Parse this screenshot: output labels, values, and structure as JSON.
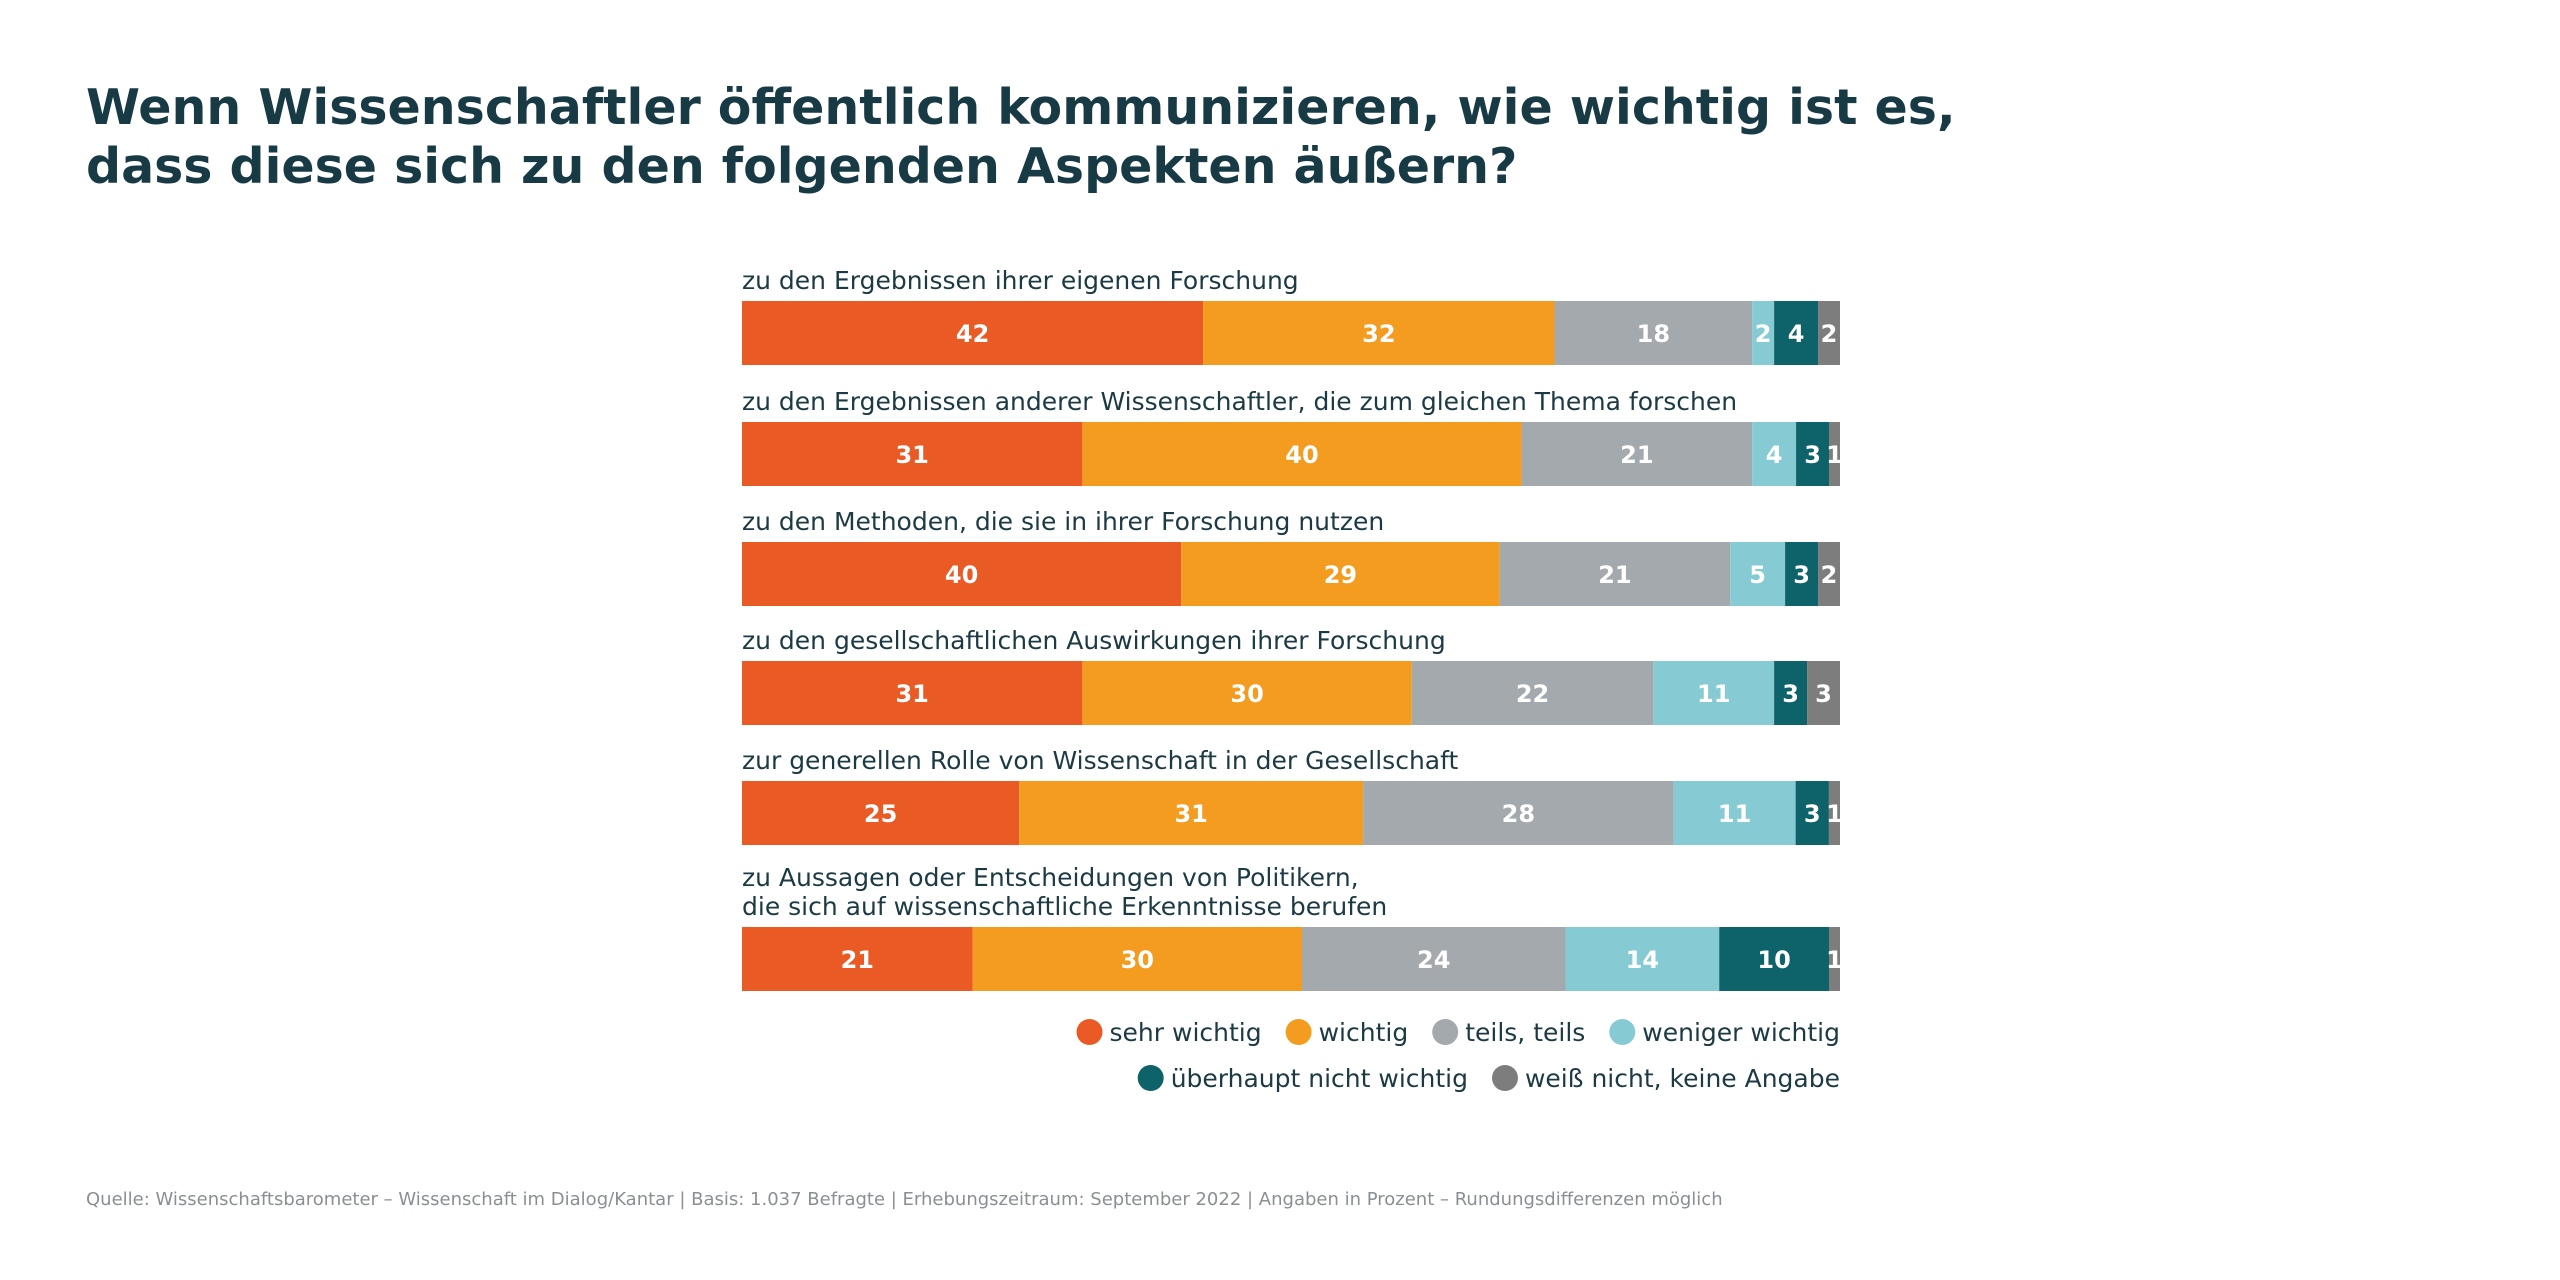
{
  "title": {
    "line1": "Wenn Wissenschaftler öffentlich kommunizieren, wie wichtig ist es,",
    "line2": "dass diese sich zu den folgenden Aspekten äußern?"
  },
  "source": "Quelle: Wissenschaftsbarometer – Wissenschaft im Dialog/Kantar | Basis: 1.037 Befragte | Erhebungszeitraum: September 2022 | Angaben in Prozent – Rundungsdifferenzen möglich",
  "chart_data": {
    "type": "bar",
    "orientation": "horizontal",
    "stacked": true,
    "categories": [
      [
        "zu den Ergebnissen ihrer eigenen Forschung"
      ],
      [
        "zu den Ergebnissen anderer Wissenschaftler, die zum gleichen Thema forschen"
      ],
      [
        "zu den Methoden, die sie in ihrer Forschung nutzen"
      ],
      [
        "zu den gesellschaftlichen Auswirkungen ihrer Forschung"
      ],
      [
        "zur generellen Rolle von Wissenschaft in der Gesellschaft"
      ],
      [
        "zu Aussagen oder Entscheidungen von Politikern,",
        "die sich auf wissenschaftliche Erkenntnisse berufen"
      ]
    ],
    "series": [
      {
        "name": "sehr wichtig",
        "color": "#e95a25",
        "values": [
          42,
          31,
          40,
          31,
          25,
          21
        ]
      },
      {
        "name": "wichtig",
        "color": "#f39c20",
        "values": [
          32,
          40,
          29,
          30,
          31,
          30
        ]
      },
      {
        "name": "teils, teils",
        "color": "#a4a9ad",
        "values": [
          18,
          21,
          21,
          22,
          28,
          24
        ]
      },
      {
        "name": "weniger wichtig",
        "color": "#86cbd4",
        "values": [
          2,
          4,
          5,
          11,
          11,
          14
        ]
      },
      {
        "name": "überhaupt nicht wichtig",
        "color": "#0e6269",
        "values": [
          4,
          3,
          3,
          3,
          3,
          10
        ]
      },
      {
        "name": "weiß nicht, keine Angabe",
        "color": "#7d7d7d",
        "values": [
          2,
          1,
          2,
          3,
          1,
          1
        ]
      }
    ],
    "unit": "Prozent",
    "legend": "bottom-right"
  }
}
